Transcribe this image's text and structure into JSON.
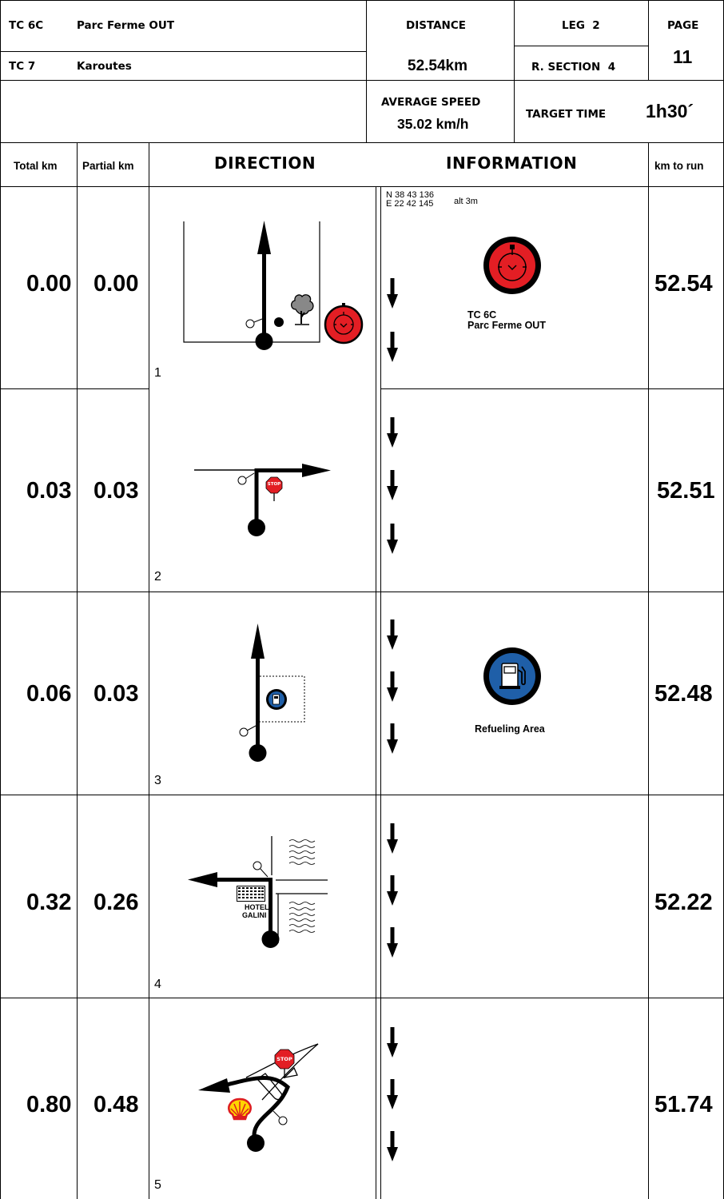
{
  "header": {
    "tc_from_code": "TC 6C",
    "tc_from_name": "Parc Ferme OUT",
    "tc_to_code": "TC 7",
    "tc_to_name": "Karoutes",
    "distance_label": "DISTANCE",
    "distance_value": "52.54km",
    "leg_label": "LEG  2",
    "section_label": "R. SECTION  4",
    "page_label": "PAGE",
    "page_number": "11",
    "average_speed_label": "AVERAGE SPEED",
    "average_speed_value": "35.02 km/h",
    "target_time_label": "TARGET TIME",
    "target_time_value": "1h30´"
  },
  "columns": {
    "total_km": "Total km",
    "partial_km": "Partial km",
    "direction": "DIRECTION",
    "information": "INFORMATION",
    "km_to_run": "km to run"
  },
  "rows": [
    {
      "number": "1",
      "total": "0.00",
      "partial": "0.00",
      "to_run": "52.54",
      "coords_n": "N 38 43 136",
      "coords_e": "E 22 42 145",
      "altitude": "alt 3m",
      "info_icon": "stopwatch-icon",
      "info_label_line1": "TC 6C",
      "info_label_line2": "Parc Ferme OUT"
    },
    {
      "number": "2",
      "total": "0.03",
      "partial": "0.03",
      "to_run": "52.51"
    },
    {
      "number": "3",
      "total": "0.06",
      "partial": "0.03",
      "to_run": "52.48",
      "info_icon": "fuel-pump-icon",
      "info_label_line1": "Refueling Area"
    },
    {
      "number": "4",
      "total": "0.32",
      "partial": "0.26",
      "to_run": "52.22",
      "landmark_line1": "HOTEL",
      "landmark_line2": "GALINI"
    },
    {
      "number": "5",
      "total": "0.80",
      "partial": "0.48",
      "to_run": "51.74",
      "sign_text": "STOP"
    }
  ],
  "sign_text_row2": "STOP",
  "colors": {
    "timing_red": "#e31e24",
    "refuel_blue": "#1f5fa8",
    "shell_yellow": "#ffd500",
    "shell_red": "#dd1d21"
  }
}
